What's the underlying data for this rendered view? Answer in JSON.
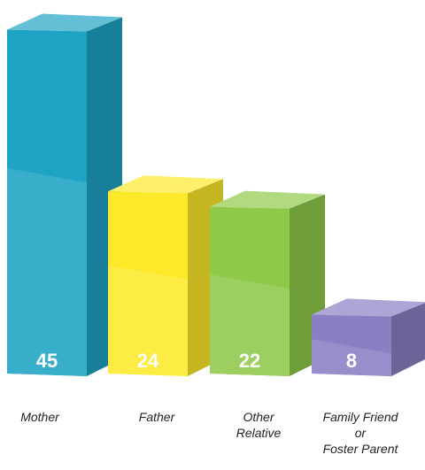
{
  "chart_data": {
    "type": "bar3d",
    "categories": [
      "Mother",
      "Father",
      "Other\nRelative",
      "Family Friend\nor\nFoster Parent"
    ],
    "values": [
      45,
      24,
      22,
      8
    ],
    "colors": [
      "#1ea3c4",
      "#fde92a",
      "#8ec94a",
      "#8b7fc4"
    ]
  }
}
